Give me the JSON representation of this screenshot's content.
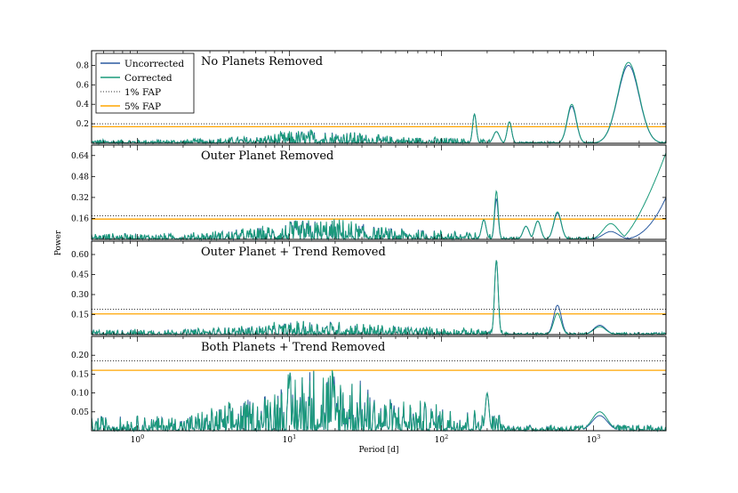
{
  "chart_data": {
    "type": "line",
    "x_scale": "log",
    "xlim": [
      0.5,
      3000
    ],
    "xlabel": "Period [d]",
    "ylabel": "Power",
    "x_ticks": [
      {
        "value": 1,
        "label": "10",
        "exp": "0"
      },
      {
        "value": 10,
        "label": "10",
        "exp": "1"
      },
      {
        "value": 100,
        "label": "10",
        "exp": "2"
      },
      {
        "value": 1000,
        "label": "10",
        "exp": "3"
      }
    ],
    "legend": {
      "position": "top-left",
      "entries": [
        {
          "label": "Uncorrected",
          "color": "#2a5aa0",
          "style": "solid"
        },
        {
          "label": "Corrected",
          "color": "#1a9a7a",
          "style": "solid"
        },
        {
          "label": "1% FAP",
          "color": "#333333",
          "style": "dotted"
        },
        {
          "label": "5% FAP",
          "color": "#ffa500",
          "style": "solid"
        }
      ]
    },
    "panels": [
      {
        "title": "No Planets Removed",
        "ylim": [
          0,
          0.95
        ],
        "yticks": [
          0.2,
          0.4,
          0.6,
          0.8
        ],
        "ytick_labels": [
          "0.2",
          "0.4",
          "0.6",
          "0.8"
        ],
        "fap1": 0.2,
        "fap5": 0.17,
        "noise": [
          0.03,
          0.06,
          0.11
        ],
        "peaks": [
          {
            "period": 165,
            "height": 0.3,
            "width": 0.012
          },
          {
            "period": 230,
            "height": 0.12,
            "width": 0.02
          },
          {
            "period": 280,
            "height": 0.22,
            "width": 0.015
          },
          {
            "period": 720,
            "height": 0.38,
            "width": 0.03,
            "h2": 0.4
          },
          {
            "period": 1700,
            "height": 0.8,
            "width": 0.07,
            "h2": 0.83
          }
        ]
      },
      {
        "title": "Outer Planet Removed",
        "ylim": [
          0,
          0.72
        ],
        "yticks": [
          0.16,
          0.32,
          0.48,
          0.64
        ],
        "ytick_labels": [
          "0.16",
          "0.32",
          "0.48",
          "0.64"
        ],
        "fap1": 0.18,
        "fap5": 0.155,
        "noise": [
          0.035,
          0.07,
          0.12
        ],
        "peaks": [
          {
            "period": 190,
            "height": 0.15,
            "width": 0.015
          },
          {
            "period": 230,
            "height": 0.31,
            "width": 0.012,
            "h2": 0.37
          },
          {
            "period": 360,
            "height": 0.1,
            "width": 0.02
          },
          {
            "period": 430,
            "height": 0.14,
            "width": 0.02
          },
          {
            "period": 580,
            "height": 0.2,
            "width": 0.025,
            "h2": 0.21
          },
          {
            "period": 1300,
            "height": 0.06,
            "width": 0.05,
            "h2": 0.12
          }
        ],
        "tail": {
          "start_period": 1500,
          "end_u": 0.32,
          "end_c": 0.66
        }
      },
      {
        "title": "Outer Planet + Trend Removed",
        "ylim": [
          0,
          0.7
        ],
        "yticks": [
          0.15,
          0.3,
          0.45,
          0.6
        ],
        "ytick_labels": [
          "0.15",
          "0.30",
          "0.45",
          "0.60"
        ],
        "fap1": 0.19,
        "fap5": 0.155,
        "noise": [
          0.03,
          0.055,
          0.08
        ],
        "peaks": [
          {
            "period": 230,
            "height": 0.56,
            "width": 0.012
          },
          {
            "period": 580,
            "height": 0.22,
            "width": 0.025,
            "h2": 0.16
          },
          {
            "period": 1100,
            "height": 0.07,
            "width": 0.04,
            "h2": 0.06
          }
        ]
      },
      {
        "title": "Both Planets + Trend Removed",
        "ylim": [
          0,
          0.25
        ],
        "yticks": [
          0.05,
          0.1,
          0.15,
          0.2
        ],
        "ytick_labels": [
          "0.05",
          "0.10",
          "0.15",
          "0.20"
        ],
        "fap1": 0.185,
        "fap5": 0.16,
        "noise": [
          0.03,
          0.07,
          0.14
        ],
        "peaks": [
          {
            "period": 200,
            "height": 0.1,
            "width": 0.012
          },
          {
            "period": 1100,
            "height": 0.04,
            "width": 0.05,
            "h2": 0.05
          }
        ]
      }
    ]
  }
}
